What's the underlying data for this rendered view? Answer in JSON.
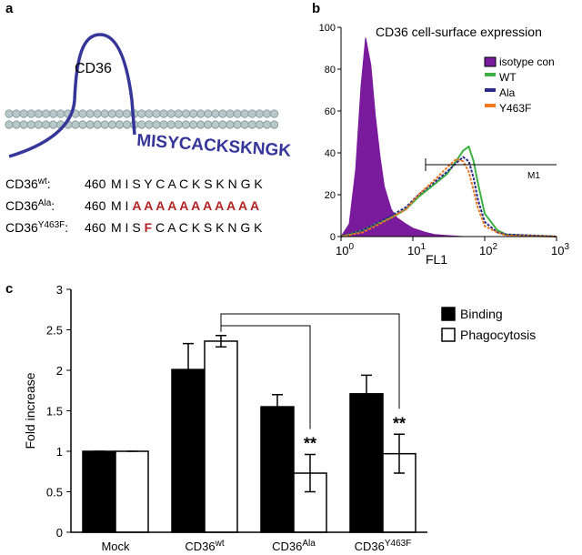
{
  "panel_a": {
    "label": "a",
    "protein": "CD36",
    "sequence": "MISYCACKSKNGK",
    "sequence_color": "#35359a",
    "rows": [
      {
        "name": "CD36",
        "sup": "wt",
        "sep": ":",
        "start": "460",
        "segments": [
          {
            "text": "M I S Y C A C K S K N G K",
            "color": "#000000",
            "bold": false
          }
        ]
      },
      {
        "name": "CD36",
        "sup": "Ala",
        "sep": ":",
        "start": "460",
        "segments": [
          {
            "text": "M I ",
            "color": "#000000",
            "bold": false
          },
          {
            "text": "A A A A A A A A A A A",
            "color": "#b22222",
            "bold": true
          }
        ]
      },
      {
        "name": "CD36",
        "sup": "Y463F",
        "sep": ":",
        "start": "460",
        "segments": [
          {
            "text": "M I S ",
            "color": "#000000",
            "bold": false
          },
          {
            "text": "F",
            "color": "#b22222",
            "bold": true
          },
          {
            "text": " C A C K S K N G K",
            "color": "#000000",
            "bold": false
          }
        ]
      }
    ]
  },
  "chart_data": [
    {
      "label": "b",
      "type": "line",
      "title": "CD36 cell-surface expression",
      "xlabel": "FL1",
      "log_x": true,
      "xlim": [
        1,
        1000
      ],
      "xticks": [
        {
          "value": 1,
          "label": "10",
          "exponent": "0"
        },
        {
          "value": 10,
          "label": "10",
          "exponent": "1"
        },
        {
          "value": 100,
          "label": "10",
          "exponent": "2"
        },
        {
          "value": 1000,
          "label": "10",
          "exponent": "3"
        }
      ],
      "ylim": [
        0,
        100
      ],
      "yticks": [
        0,
        20,
        40,
        60,
        80,
        100
      ],
      "annotation": "M1",
      "legend": "upper-right",
      "series": [
        {
          "name": "isotype con",
          "color": "#7a1a9c",
          "fill": true,
          "x": [
            1,
            1.3,
            1.6,
            1.9,
            2.2,
            2.6,
            3,
            3.5,
            4,
            5,
            6,
            8,
            10,
            15,
            20,
            30,
            50,
            100,
            1000
          ],
          "values": [
            0,
            6,
            32,
            72,
            95,
            82,
            58,
            38,
            24,
            13,
            9,
            6,
            4,
            2,
            1,
            0.5,
            0,
            0,
            0
          ]
        },
        {
          "name": "WT",
          "color": "#3cb043",
          "fill": false,
          "x": [
            1,
            2,
            3,
            5,
            8,
            12,
            20,
            30,
            40,
            50,
            60,
            70,
            80,
            100,
            150,
            200,
            1000
          ],
          "values": [
            0,
            3,
            6,
            9,
            13,
            19,
            25,
            30,
            36,
            41,
            43,
            36,
            26,
            11,
            3,
            1,
            0
          ]
        },
        {
          "name": "Ala",
          "color": "#2a2a8a",
          "fill": false,
          "x": [
            1,
            2,
            3,
            5,
            8,
            12,
            20,
            30,
            40,
            50,
            60,
            70,
            80,
            100,
            150,
            200,
            1000
          ],
          "values": [
            0,
            3,
            6,
            10,
            14,
            20,
            26,
            31,
            35,
            38,
            36,
            28,
            18,
            7,
            2,
            1,
            0
          ]
        },
        {
          "name": "Y463F",
          "color": "#f07820",
          "fill": false,
          "x": [
            1,
            2,
            3,
            5,
            8,
            12,
            20,
            30,
            40,
            50,
            60,
            70,
            80,
            100,
            150,
            200,
            1000
          ],
          "values": [
            0,
            2,
            5,
            9,
            13,
            20,
            27,
            33,
            37,
            36,
            31,
            22,
            14,
            5,
            2,
            0.5,
            0
          ]
        }
      ]
    },
    {
      "label": "c",
      "type": "bar",
      "ylabel": "Fold increase",
      "categories": [
        {
          "label": "Mock"
        },
        {
          "label": "CD36",
          "sup": "wt"
        },
        {
          "label": "CD36",
          "sup": "Ala"
        },
        {
          "label": "CD36",
          "sup": "Y463F"
        }
      ],
      "ylim": [
        0,
        3
      ],
      "yticks": [
        0,
        0.5,
        1,
        1.5,
        2,
        2.5,
        3
      ],
      "legend": "upper-right",
      "series": [
        {
          "name": "Binding",
          "color": "#000000",
          "values": [
            1,
            2.01,
            1.55,
            1.71
          ],
          "errors": [
            0,
            0.32,
            0.15,
            0.23
          ],
          "significance": [
            null,
            null,
            null,
            null
          ]
        },
        {
          "name": "Phagocytosis",
          "color": "#ffffff",
          "values": [
            1,
            2.36,
            0.73,
            0.97
          ],
          "errors": [
            0,
            0.07,
            0.23,
            0.24
          ],
          "significance": [
            null,
            null,
            "**",
            "**"
          ]
        }
      ]
    }
  ]
}
